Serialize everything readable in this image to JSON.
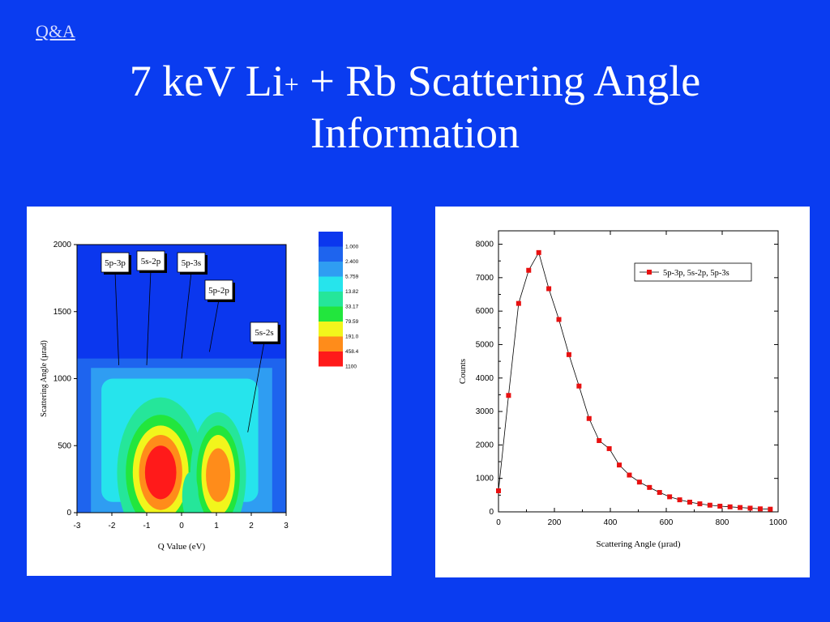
{
  "header": {
    "link_label": "Q&A",
    "title_line1_a": "7 keV Li",
    "title_sup": "+",
    "title_line1_b": " + Rb Scattering Angle",
    "title_line2": "Information"
  },
  "chart_data": [
    {
      "type": "heatmap",
      "xlabel": "Q Value (eV)",
      "ylabel": "Scattering Angle (µrad)",
      "xlim": [
        -3,
        3
      ],
      "ylim": [
        0,
        2000
      ],
      "x_ticks": [
        "-3",
        "-2",
        "-1",
        "0",
        "1",
        "2",
        "3"
      ],
      "y_ticks": [
        "0",
        "500",
        "1000",
        "1500",
        "2000"
      ],
      "color_scale": {
        "labels": [
          "1.000",
          "2.400",
          "5.759",
          "13.82",
          "33.17",
          "79.59",
          "191.0",
          "458.4",
          "1100"
        ],
        "colors": [
          "#0b37ee",
          "#1e64ee",
          "#2f9df2",
          "#26e4ec",
          "#25e69a",
          "#22e63d",
          "#f2f51c",
          "#ff8c1a",
          "#ff1a1a"
        ]
      },
      "peaks": [
        {
          "q": -0.6,
          "angle": 280,
          "level_label": "1100"
        },
        {
          "q": 1.05,
          "angle": 260,
          "level_label": "458.4"
        }
      ],
      "annotations": [
        {
          "label": "5p-3p",
          "points_to": {
            "q": -1.8,
            "angle": 1100
          }
        },
        {
          "label": "5s-2p",
          "points_to": {
            "q": -1.0,
            "angle": 1100
          }
        },
        {
          "label": "5p-3s",
          "points_to": {
            "q": 0.0,
            "angle": 1150
          }
        },
        {
          "label": "5p-2p",
          "points_to": {
            "q": 0.8,
            "angle": 1200
          }
        },
        {
          "label": "5s-2s",
          "points_to": {
            "q": 1.9,
            "angle": 600
          }
        }
      ]
    },
    {
      "type": "line",
      "xlabel": "Scattering Angle (µrad)",
      "ylabel": "Counts",
      "xlim": [
        0,
        1000
      ],
      "ylim": [
        0,
        8400
      ],
      "x_ticks": [
        "0",
        "200",
        "400",
        "600",
        "800",
        "1000"
      ],
      "y_ticks": [
        "0",
        "1000",
        "2000",
        "3000",
        "4000",
        "5000",
        "6000",
        "7000",
        "8000"
      ],
      "legend_position": "top-right",
      "series": [
        {
          "name": "5p-3p, 5s-2p, 5p-3s",
          "color": "#e81010",
          "x": [
            0,
            36,
            72,
            108,
            144,
            180,
            216,
            252,
            288,
            324,
            360,
            396,
            432,
            468,
            504,
            540,
            576,
            612,
            648,
            684,
            720,
            756,
            792,
            828,
            864,
            900,
            936,
            972
          ],
          "y": [
            630,
            3480,
            6230,
            7220,
            7750,
            6670,
            5750,
            4700,
            3760,
            2790,
            2130,
            1890,
            1400,
            1100,
            890,
            730,
            580,
            450,
            360,
            290,
            240,
            200,
            170,
            150,
            130,
            110,
            90,
            80
          ]
        }
      ]
    }
  ]
}
